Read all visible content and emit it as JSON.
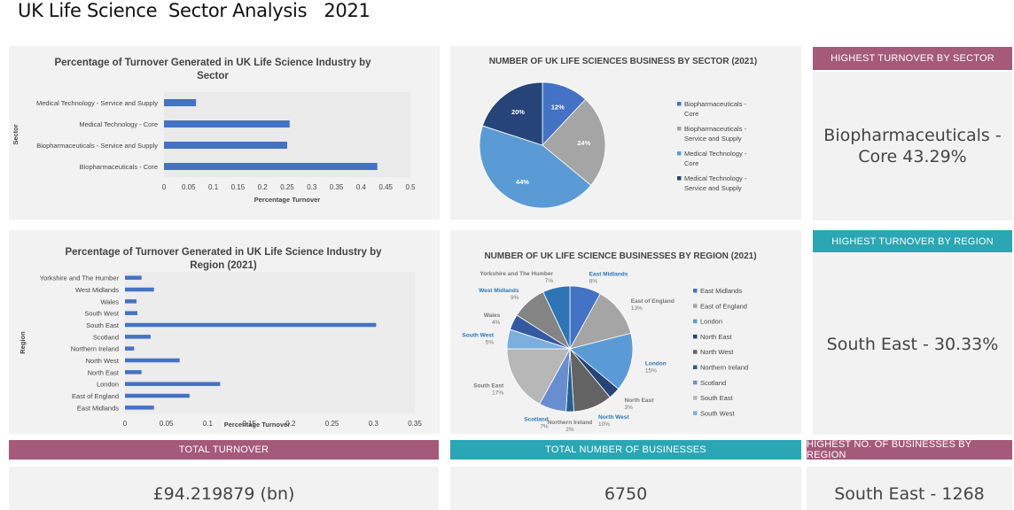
{
  "title": "UK Life Science  Sector Analysis   2021",
  "kpis": {
    "highest_sector_header": "HIGHEST TURNOVER BY SECTOR",
    "highest_sector_value": "Biopharmaceuticals - Core  43.29%",
    "highest_region_header": "HIGHEST TURNOVER BY REGION",
    "highest_region_value": "South East - 30.33%",
    "total_turnover_header": "TOTAL TURNOVER",
    "total_turnover_value": "£94.219879 (bn)",
    "total_businesses_header": "TOTAL NUMBER OF BUSINESSES",
    "total_businesses_value": "6750",
    "highest_businesses_header": "HIGHEST NO. OF BUSINESSES BY REGION",
    "highest_businesses_value": "South East - 1268"
  },
  "colors": {
    "bar": "#4472c4",
    "mauve": "#a45a78",
    "teal": "#2aa6b4"
  },
  "chart_data": [
    {
      "type": "bar",
      "orientation": "horizontal",
      "title": "Percentage of Turnover Generated in UK Life Science Industry by Sector",
      "xlabel": "Percentage Turnover",
      "ylabel": "Sector",
      "categories": [
        "Biopharmaceuticals - Core",
        "Biopharmaceuticals - Service and Supply",
        "Medical Technology - Core",
        "Medical Technology - Service and Supply"
      ],
      "values": [
        0.4329,
        0.25,
        0.255,
        0.065
      ],
      "xlim": [
        0,
        0.5
      ],
      "xticks": [
        "0",
        "0.05",
        "0.1",
        "0.15",
        "0.2",
        "0.25",
        "0.3",
        "0.35",
        "0.4",
        "0.45",
        "0.5"
      ],
      "grid": false
    },
    {
      "type": "pie",
      "title": "NUMBER OF UK LIFE SCIENCES BUSINESS BY SECTOR (2021)",
      "categories": [
        "Biopharmaceuticals - Core",
        "Biopharmaceuticals - Service and Supply",
        "Medical Technology - Core",
        "Medical Technology - Service and Supply"
      ],
      "values": [
        12,
        24,
        44,
        20
      ],
      "labels": [
        "12%",
        "24%",
        "44%",
        "20%"
      ],
      "colors": [
        "#4472c4",
        "#a5a5a5",
        "#5b9bd5",
        "#264478"
      ],
      "legend": "right"
    },
    {
      "type": "bar",
      "orientation": "horizontal",
      "title": "Percentage of Turnover Generated in UK Life Science Industry by Region  (2021)",
      "xlabel": "Percentage Turnover",
      "ylabel": "Region",
      "categories": [
        "East Midlands",
        "East of England",
        "London",
        "North East",
        "North West",
        "Northern Ireland",
        "Scotland",
        "South East",
        "South West",
        "Wales",
        "West Midlands",
        "Yorkshire and The Humber"
      ],
      "values": [
        0.035,
        0.078,
        0.115,
        0.02,
        0.066,
        0.011,
        0.031,
        0.3033,
        0.015,
        0.014,
        0.035,
        0.02
      ],
      "xlim": [
        0,
        0.35
      ],
      "xticks": [
        "0",
        "0.05",
        "0.1",
        "0.15",
        "0.2",
        "0.25",
        "0.3",
        "0.35"
      ],
      "grid": false
    },
    {
      "type": "pie",
      "title": "NUMBER OF UK LIFE SCIENCE BUSINESSES BY REGION (2021)",
      "categories": [
        "East Midlands",
        "East of England",
        "London",
        "North East",
        "North West",
        "Northern Ireland",
        "Scotland",
        "South East",
        "South West",
        "Wales",
        "West Midlands",
        "Yorkshire and The Humber"
      ],
      "values": [
        8,
        13,
        15,
        3,
        10,
        2,
        7,
        17,
        5,
        4,
        9,
        7
      ],
      "colors": [
        "#4472c4",
        "#a5a5a5",
        "#5b9bd5",
        "#264478",
        "#636363",
        "#255e91",
        "#698ed0",
        "#b7b7b7",
        "#7cafdd",
        "#335aa1",
        "#848484",
        "#2e75b6"
      ],
      "legend": "right",
      "legend_entries": [
        "East Midlands",
        "East of England",
        "London",
        "North East",
        "North West",
        "Northern Ireland",
        "Scotland",
        "South East",
        "South West"
      ]
    }
  ]
}
